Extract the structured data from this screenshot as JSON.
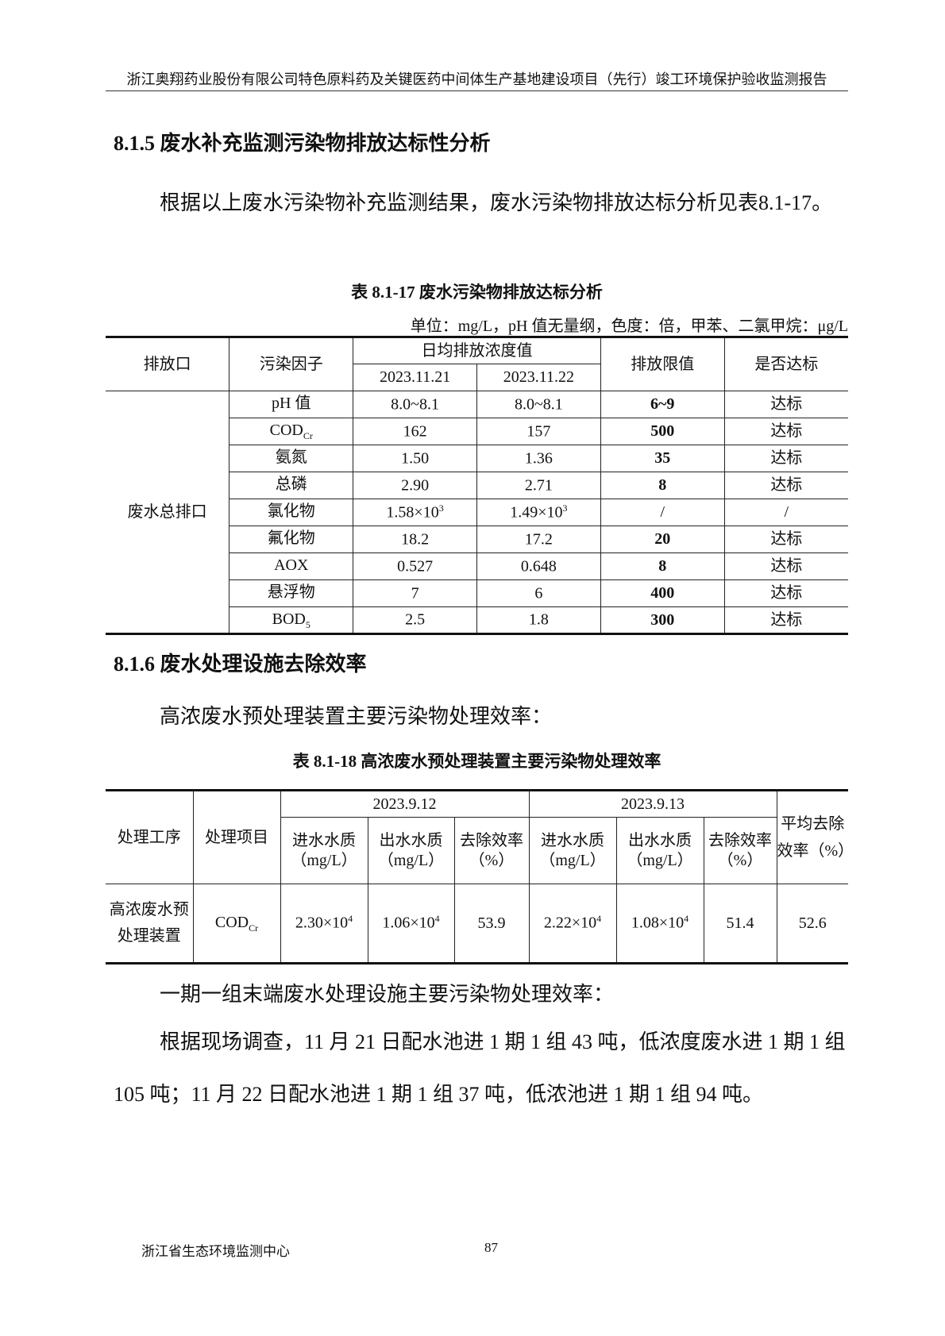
{
  "header": "浙江奥翔药业股份有限公司特色原料药及关键医药中间体生产基地建设项目（先行）竣工环境保护验收监测报告",
  "s1": {
    "title": "8.1.5  废水补充监测污染物排放达标性分析",
    "para": "根据以上废水污染物补充监测结果，废水污染物排放达标分析见表8.1-17。"
  },
  "t1": {
    "caption": "表 8.1-17  废水污染物排放达标分析",
    "unit": "单位：mg/L，pH 值无量纲，色度：倍，甲苯、二氯甲烷：μg/L",
    "h": {
      "outlet": "排放口",
      "factor": "污染因子",
      "avg": "日均排放浓度值",
      "d1": "2023.11.21",
      "d2": "2023.11.22",
      "limit": "排放限值",
      "ok": "是否达标"
    },
    "outlet": "废水总排口",
    "rows": [
      {
        "f": "pH 值",
        "fs": "",
        "a": "8.0~8.1",
        "as": "",
        "b": "8.0~8.1",
        "bs": "",
        "l": "6~9",
        "ok": "达标"
      },
      {
        "f": "COD",
        "fs": "Cr",
        "a": "162",
        "as": "",
        "b": "157",
        "bs": "",
        "l": "500",
        "ok": "达标"
      },
      {
        "f": "氨氮",
        "fs": "",
        "a": "1.50",
        "as": "",
        "b": "1.36",
        "bs": "",
        "l": "35",
        "ok": "达标"
      },
      {
        "f": "总磷",
        "fs": "",
        "a": "2.90",
        "as": "",
        "b": "2.71",
        "bs": "",
        "l": "8",
        "ok": "达标"
      },
      {
        "f": "氯化物",
        "fs": "",
        "a": "1.58×10",
        "as": "3",
        "b": "1.49×10",
        "bs": "3",
        "l": "/",
        "ok": "/"
      },
      {
        "f": "氟化物",
        "fs": "",
        "a": "18.2",
        "as": "",
        "b": "17.2",
        "bs": "",
        "l": "20",
        "ok": "达标"
      },
      {
        "f": "AOX",
        "fs": "",
        "a": "0.527",
        "as": "",
        "b": "0.648",
        "bs": "",
        "l": "8",
        "ok": "达标"
      },
      {
        "f": "悬浮物",
        "fs": "",
        "a": "7",
        "as": "",
        "b": "6",
        "bs": "",
        "l": "400",
        "ok": "达标"
      },
      {
        "f": "BOD",
        "fs": "5",
        "a": "2.5",
        "as": "",
        "b": "1.8",
        "bs": "",
        "l": "300",
        "ok": "达标"
      }
    ]
  },
  "s2": {
    "title": "8.1.6  废水处理设施去除效率",
    "para": "高浓废水预处理装置主要污染物处理效率："
  },
  "t2": {
    "caption": "表 8.1-18  高浓废水预处理装置主要污染物处理效率",
    "h": {
      "proc": "处理工序",
      "item": "处理项目",
      "d1": "2023.9.12",
      "d2": "2023.9.13",
      "in": "进水水质（mg/L）",
      "out": "出水水质（mg/L）",
      "rate": "去除效率（%）",
      "avg": "平均去除效率（%）"
    },
    "row": {
      "proc": "高浓废水预处理装置",
      "item": "COD",
      "item_sub": "Cr",
      "in1": "2.30×10",
      "in1s": "4",
      "out1": "1.06×10",
      "out1s": "4",
      "r1": "53.9",
      "in2": "2.22×10",
      "in2s": "4",
      "out2": "1.08×10",
      "out2s": "4",
      "r2": "51.4",
      "avg": "52.6"
    }
  },
  "p3": "一期一组末端废水处理设施主要污染物处理效率：",
  "p4": "根据现场调查，11 月 21 日配水池进 1 期 1 组 43 吨，低浓度废水进 1 期 1 组 105 吨；11 月 22 日配水池进 1 期 1 组 37 吨，低浓池进 1 期 1 组 94 吨。",
  "footer": {
    "org": "浙江省生态环境监测中心",
    "page": "87"
  }
}
